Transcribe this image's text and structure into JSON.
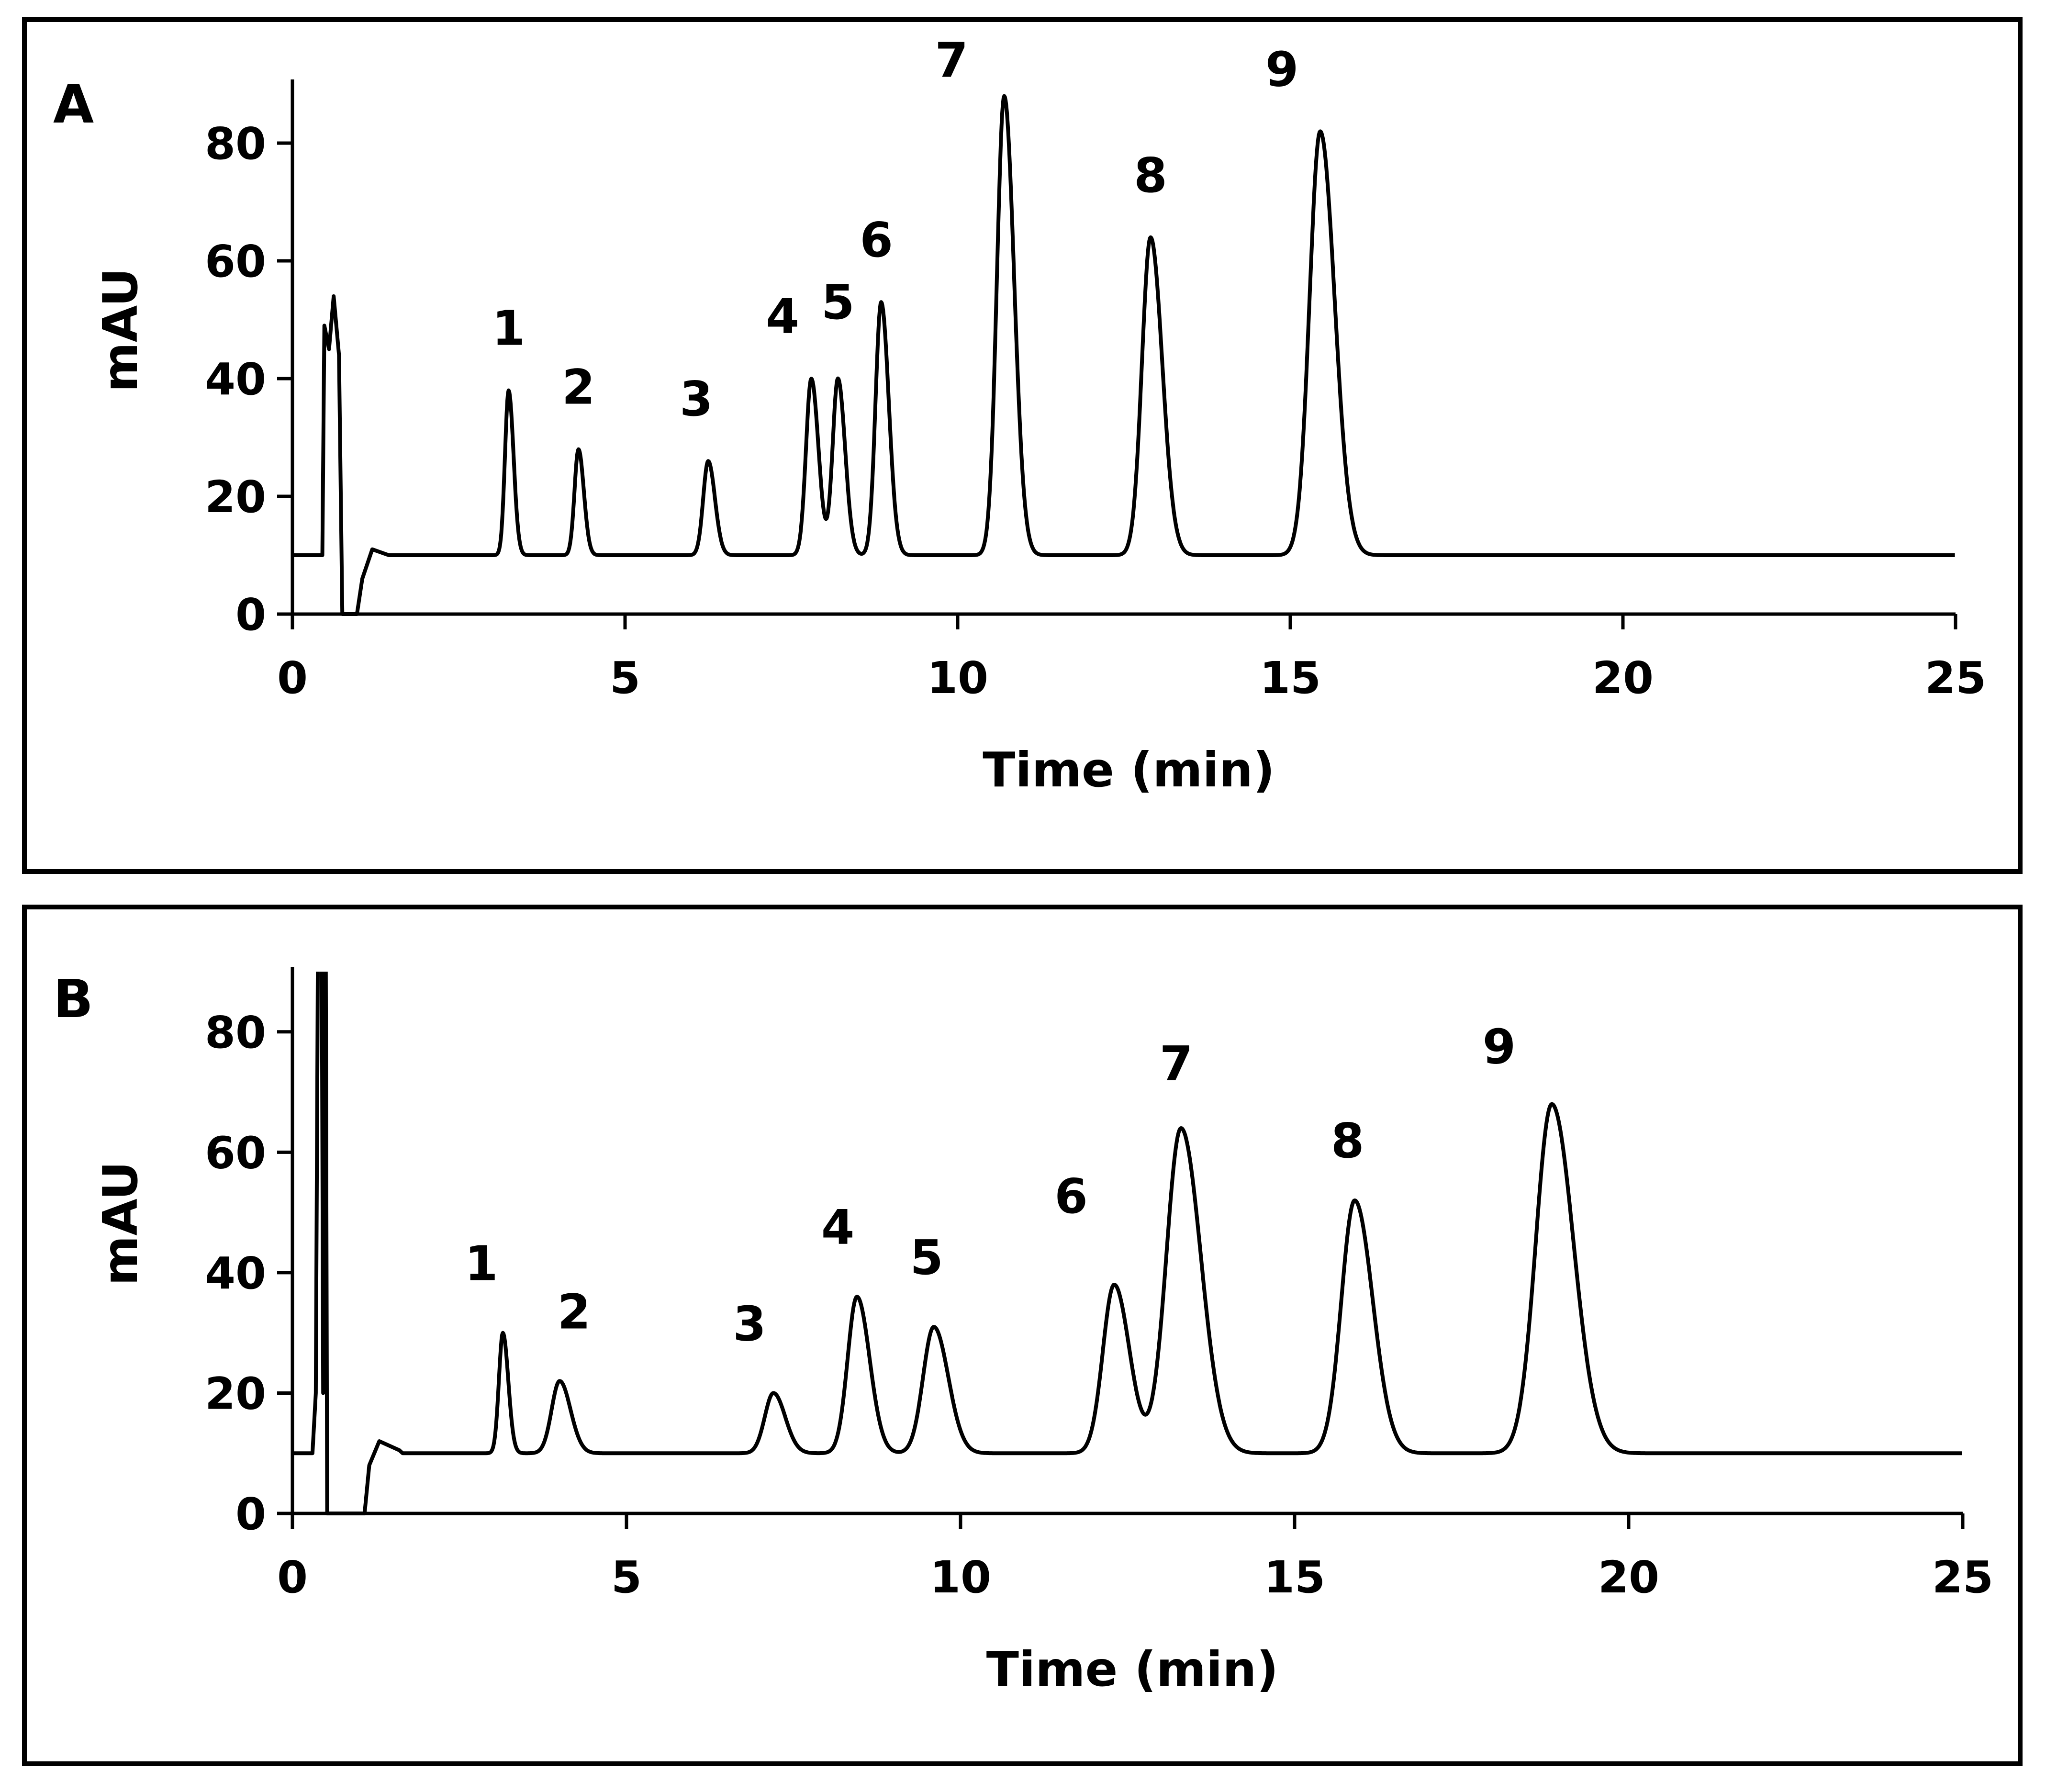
{
  "chart_data": [
    {
      "panel": "A",
      "type": "line",
      "xlabel": "Time (min)",
      "ylabel": "mAU",
      "xlim": [
        0,
        25
      ],
      "ylim": [
        0,
        90
      ],
      "xticks": [
        0,
        5,
        10,
        15,
        20,
        25
      ],
      "yticks": [
        0,
        20,
        40,
        60,
        80
      ],
      "baseline": 10,
      "peaks": [
        {
          "label": "1",
          "time": 3.25,
          "height": 38
        },
        {
          "label": "2",
          "time": 4.3,
          "height": 28
        },
        {
          "label": "3",
          "time": 6.25,
          "height": 26
        },
        {
          "label": "4",
          "time": 7.8,
          "height": 40
        },
        {
          "label": "5",
          "time": 8.2,
          "height": 40
        },
        {
          "label": "6",
          "time": 8.85,
          "height": 53
        },
        {
          "label": "7",
          "time": 10.7,
          "height": 88
        },
        {
          "label": "8",
          "time": 12.9,
          "height": 64
        },
        {
          "label": "9",
          "time": 15.45,
          "height": 82
        }
      ]
    },
    {
      "panel": "B",
      "type": "line",
      "xlabel": "Time (min)",
      "ylabel": "mAU",
      "xlim": [
        0,
        25
      ],
      "ylim": [
        0,
        90
      ],
      "xticks": [
        0,
        5,
        10,
        15,
        20,
        25
      ],
      "yticks": [
        0,
        20,
        40,
        60,
        80
      ],
      "baseline": 10,
      "peaks": [
        {
          "label": "1",
          "time": 3.15,
          "height": 30
        },
        {
          "label": "2",
          "time": 4.0,
          "height": 22
        },
        {
          "label": "3",
          "time": 7.2,
          "height": 20
        },
        {
          "label": "4",
          "time": 8.45,
          "height": 36
        },
        {
          "label": "5",
          "time": 9.6,
          "height": 31
        },
        {
          "label": "6",
          "time": 12.3,
          "height": 38
        },
        {
          "label": "7",
          "time": 13.3,
          "height": 64
        },
        {
          "label": "8",
          "time": 15.9,
          "height": 52
        },
        {
          "label": "9",
          "time": 18.85,
          "height": 68
        }
      ]
    }
  ]
}
